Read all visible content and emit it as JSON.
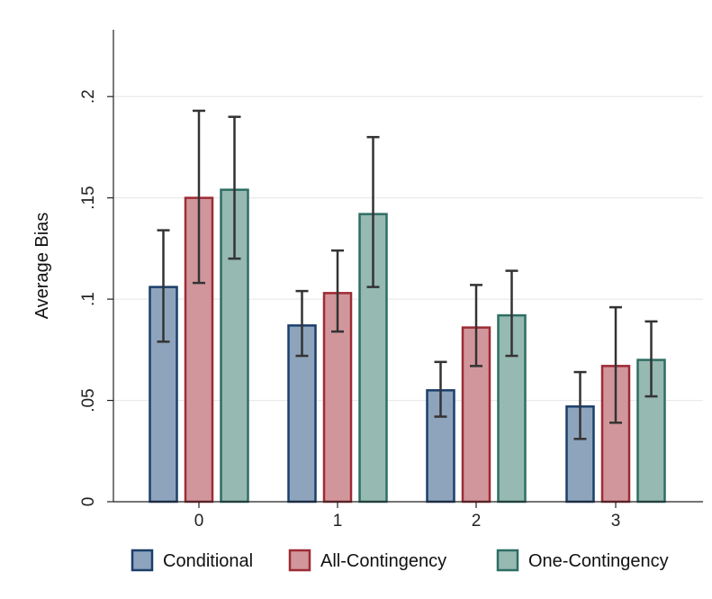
{
  "chart_data": {
    "type": "bar",
    "ylabel": "Average Bias",
    "xlabel": "",
    "ylim": [
      0,
      0.233
    ],
    "y_ticks": [
      {
        "value": 0,
        "label": "0"
      },
      {
        "value": 0.05,
        "label": ".05"
      },
      {
        "value": 0.1,
        "label": ".1"
      },
      {
        "value": 0.15,
        "label": ".15"
      },
      {
        "value": 0.2,
        "label": ".2"
      }
    ],
    "categories": [
      "0",
      "1",
      "2",
      "3"
    ],
    "grid": true,
    "legend_position": "bottom",
    "error_bars": true,
    "series": [
      {
        "name": "Conditional",
        "fill": "#8ea4bd",
        "stroke": "#1b3f6b",
        "values": [
          0.106,
          0.087,
          0.055,
          0.047
        ],
        "ci_low": [
          0.079,
          0.072,
          0.042,
          0.031
        ],
        "ci_high": [
          0.134,
          0.104,
          0.069,
          0.064
        ]
      },
      {
        "name": "All-Contingency",
        "fill": "#d1969b",
        "stroke": "#9e2b34",
        "values": [
          0.15,
          0.103,
          0.086,
          0.067
        ],
        "ci_low": [
          0.108,
          0.084,
          0.067,
          0.039
        ],
        "ci_high": [
          0.193,
          0.124,
          0.107,
          0.096
        ]
      },
      {
        "name": "One-Contingency",
        "fill": "#96b9b2",
        "stroke": "#2e6e63",
        "values": [
          0.154,
          0.142,
          0.092,
          0.07
        ],
        "ci_low": [
          0.12,
          0.106,
          0.072,
          0.052
        ],
        "ci_high": [
          0.19,
          0.18,
          0.114,
          0.089
        ]
      }
    ]
  },
  "colors": {
    "grid": "#eaeaea",
    "axis": "#222222",
    "error_bar": "#333333"
  }
}
